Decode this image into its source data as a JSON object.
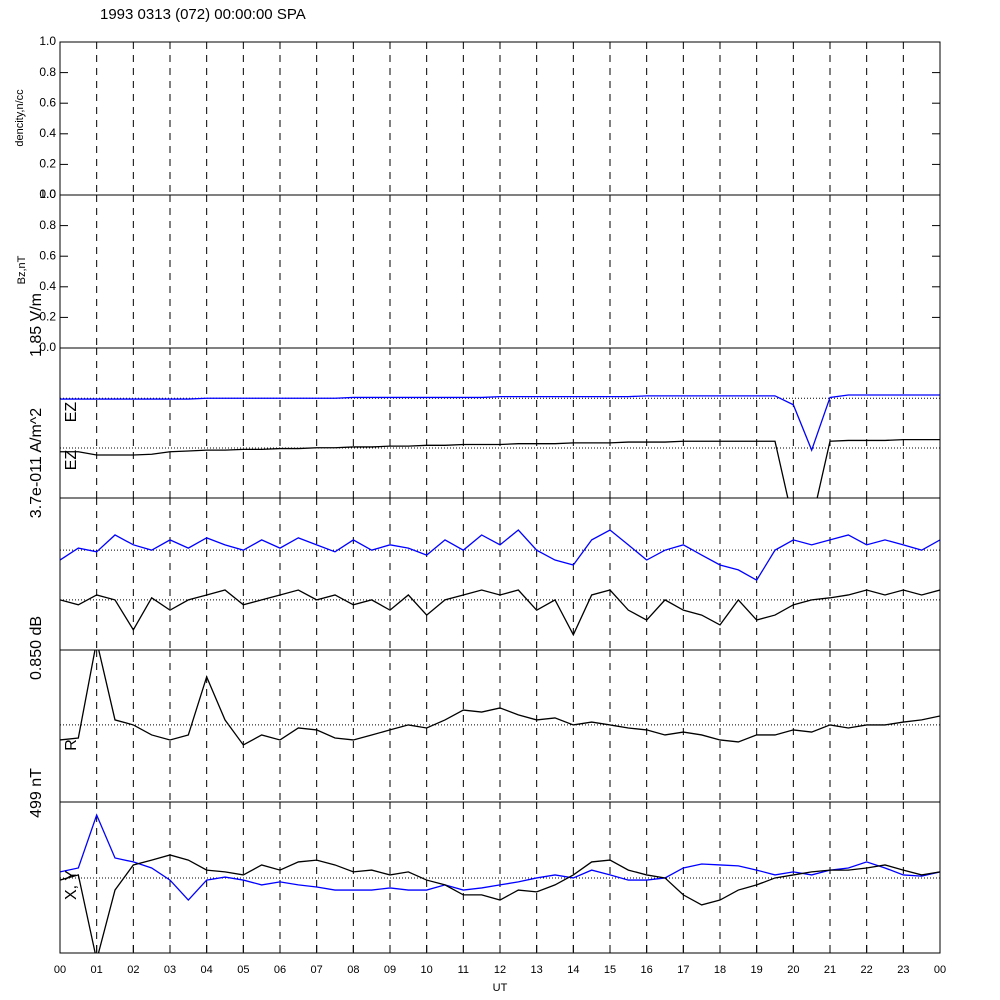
{
  "chart_data": [
    {
      "type": "line",
      "title": "1993 0313 (072) 00:00:00 SPA",
      "ylabel": "dencity,n/cc",
      "ylim": [
        0,
        1
      ],
      "yticks": [
        {
          "value": 0,
          "label": "0.0"
        },
        {
          "value": 0.2,
          "label": "0.2"
        },
        {
          "value": 0.4,
          "label": "0.4"
        },
        {
          "value": 0.6,
          "label": "0.6"
        },
        {
          "value": 0.8,
          "label": "0.8"
        },
        {
          "value": 1,
          "label": "1.0"
        }
      ]
    },
    {
      "type": "line",
      "ylabel": "Bz,nT",
      "ylim": [
        0,
        1
      ],
      "yticks": [
        {
          "value": 0,
          "label": "0.0"
        },
        {
          "value": 0.2,
          "label": "0.2"
        },
        {
          "value": 0.4,
          "label": "0.4"
        },
        {
          "value": 0.6,
          "label": "0.6"
        },
        {
          "value": 0.8,
          "label": "0.8"
        },
        {
          "value": 1,
          "label": "1.0"
        }
      ]
    },
    {
      "type": "line",
      "scale_label": "1.85 V/m",
      "ylim": [
        0,
        1.85
      ],
      "hlines": [
        1.23,
        0.617
      ],
      "x": [
        0,
        0.5,
        1,
        1.5,
        2,
        2.5,
        3,
        3.5,
        4,
        4.5,
        5,
        5.5,
        6,
        6.5,
        7,
        7.5,
        8,
        8.5,
        9,
        9.5,
        10,
        10.5,
        11,
        11.5,
        12,
        12.5,
        13,
        13.5,
        14,
        14.5,
        15,
        15.5,
        16,
        16.5,
        17,
        17.5,
        18,
        18.5,
        19,
        19.5,
        20,
        20.5,
        21,
        21.5,
        22,
        22.5,
        23,
        23.5,
        24
      ],
      "series": [
        {
          "name": "EZ",
          "color": "#0000ff",
          "values": [
            1.22,
            1.22,
            1.22,
            1.22,
            1.22,
            1.22,
            1.22,
            1.22,
            1.23,
            1.23,
            1.23,
            1.23,
            1.23,
            1.23,
            1.23,
            1.23,
            1.24,
            1.24,
            1.24,
            1.24,
            1.24,
            1.24,
            1.24,
            1.24,
            1.25,
            1.25,
            1.25,
            1.25,
            1.25,
            1.25,
            1.25,
            1.25,
            1.26,
            1.26,
            1.26,
            1.26,
            1.26,
            1.26,
            1.26,
            1.26,
            1.15,
            0.59,
            1.24,
            1.27,
            1.27,
            1.27,
            1.27,
            1.27,
            1.27
          ]
        },
        {
          "name": "EZ",
          "color": "#000000",
          "values": [
            0.57,
            0.57,
            0.53,
            0.53,
            0.53,
            0.54,
            0.57,
            0.58,
            0.59,
            0.59,
            0.6,
            0.6,
            0.61,
            0.61,
            0.62,
            0.62,
            0.63,
            0.63,
            0.64,
            0.64,
            0.65,
            0.65,
            0.66,
            0.66,
            0.66,
            0.67,
            0.67,
            0.67,
            0.68,
            0.68,
            0.68,
            0.69,
            0.69,
            0.69,
            0.7,
            0.7,
            0.7,
            0.7,
            0.7,
            0.7,
            -0.3,
            -0.3,
            0.7,
            0.71,
            0.71,
            0.71,
            0.72,
            0.72,
            0.72
          ]
        }
      ]
    },
    {
      "type": "line",
      "scale_label": "3.7e-011 A/m^2",
      "ylim": [
        0,
        3.7e-11
      ],
      "hlines": [
        2.43e-11,
        1.22e-11
      ],
      "x": [
        0,
        0.5,
        1,
        1.5,
        2,
        2.5,
        3,
        3.5,
        4,
        4.5,
        5,
        5.5,
        6,
        6.5,
        7,
        7.5,
        8,
        8.5,
        9,
        9.5,
        10,
        10.5,
        11,
        11.5,
        12,
        12.5,
        13,
        13.5,
        14,
        14.5,
        15,
        15.5,
        16,
        16.5,
        17,
        17.5,
        18,
        18.5,
        19,
        19.5,
        20,
        20.5,
        21,
        21.5,
        22,
        22.5,
        23,
        23.5,
        24
      ],
      "series": [
        {
          "color": "#0000ff",
          "values": [
            2.19e-11,
            2.48e-11,
            2.39e-11,
            2.8e-11,
            2.56e-11,
            2.43e-11,
            2.68e-11,
            2.48e-11,
            2.73e-11,
            2.56e-11,
            2.43e-11,
            2.68e-11,
            2.48e-11,
            2.73e-11,
            2.56e-11,
            2.39e-11,
            2.68e-11,
            2.43e-11,
            2.56e-11,
            2.48e-11,
            2.31e-11,
            2.68e-11,
            2.43e-11,
            2.8e-11,
            2.56e-11,
            2.92e-11,
            2.43e-11,
            2.19e-11,
            2.07e-11,
            2.68e-11,
            2.92e-11,
            2.56e-11,
            2.19e-11,
            2.43e-11,
            2.56e-11,
            2.31e-11,
            2.07e-11,
            1.95e-11,
            1.7e-11,
            2.43e-11,
            2.68e-11,
            2.56e-11,
            2.68e-11,
            2.8e-11,
            2.56e-11,
            2.68e-11,
            2.56e-11,
            2.43e-11,
            2.68e-11
          ]
        },
        {
          "color": "#000000",
          "values": [
            1.22e-11,
            1.1e-11,
            1.34e-11,
            1.22e-11,
            4.9e-12,
            1.27e-11,
            9.7e-12,
            1.22e-11,
            1.34e-11,
            1.46e-11,
            1.1e-11,
            1.22e-11,
            1.34e-11,
            1.46e-11,
            1.22e-11,
            1.34e-11,
            1.1e-11,
            1.22e-11,
            9.7e-12,
            1.34e-11,
            8.5e-12,
            1.22e-11,
            1.34e-11,
            1.46e-11,
            1.34e-11,
            1.46e-11,
            9.7e-12,
            1.22e-11,
            3.7e-12,
            1.34e-11,
            1.46e-11,
            9.7e-12,
            7.3e-12,
            1.22e-11,
            9.7e-12,
            8.5e-12,
            6.1e-12,
            1.22e-11,
            7.3e-12,
            8.5e-12,
            1.1e-11,
            1.22e-11,
            1.27e-11,
            1.34e-11,
            1.46e-11,
            1.34e-11,
            1.46e-11,
            1.34e-11,
            1.46e-11
          ]
        }
      ]
    },
    {
      "type": "line",
      "scale_label": "0.850 dB",
      "ylabel": "R",
      "ylim": [
        0,
        0.85
      ],
      "hlines": [
        0.431
      ],
      "x": [
        0,
        0.5,
        1,
        1.5,
        2,
        2.5,
        3,
        3.5,
        4,
        4.5,
        5,
        5.5,
        6,
        6.5,
        7,
        7.5,
        8,
        8.5,
        9,
        9.5,
        10,
        10.5,
        11,
        11.5,
        12,
        12.5,
        13,
        13.5,
        14,
        14.5,
        15,
        15.5,
        16,
        16.5,
        17,
        17.5,
        18,
        18.5,
        19,
        19.5,
        20,
        20.5,
        21,
        21.5,
        22,
        22.5,
        23,
        23.5,
        24
      ],
      "series": [
        {
          "color": "#000000",
          "values": [
            0.347,
            0.358,
            0.9,
            0.459,
            0.431,
            0.375,
            0.347,
            0.375,
            0.7,
            0.459,
            0.319,
            0.375,
            0.347,
            0.414,
            0.403,
            0.358,
            0.347,
            0.375,
            0.403,
            0.431,
            0.414,
            0.459,
            0.514,
            0.503,
            0.526,
            0.487,
            0.459,
            0.47,
            0.431,
            0.447,
            0.431,
            0.414,
            0.403,
            0.375,
            0.391,
            0.375,
            0.347,
            0.336,
            0.375,
            0.375,
            0.403,
            0.391,
            0.431,
            0.414,
            0.431,
            0.431,
            0.447,
            0.459,
            0.481
          ]
        }
      ]
    },
    {
      "type": "line",
      "scale_label": "499 nT",
      "ylabel": "X, Y",
      "ylim": [
        0,
        499
      ],
      "hlines": [
        248
      ],
      "x": [
        0,
        0.5,
        1,
        1.5,
        2,
        2.5,
        3,
        3.5,
        4,
        4.5,
        5,
        5.5,
        6,
        6.5,
        7,
        7.5,
        8,
        8.5,
        9,
        9.5,
        10,
        10.5,
        11,
        11.5,
        12,
        12.5,
        13,
        13.5,
        14,
        14.5,
        15,
        15.5,
        16,
        16.5,
        17,
        17.5,
        18,
        18.5,
        19,
        19.5,
        20,
        20.5,
        21,
        21.5,
        22,
        22.5,
        23,
        23.5,
        24
      ],
      "series": [
        {
          "color": "#0000ff",
          "values": [
            268,
            281,
            456,
            314,
            301,
            281,
            241,
            175,
            241,
            251,
            241,
            225,
            235,
            225,
            218,
            208,
            208,
            208,
            215,
            208,
            208,
            225,
            208,
            215,
            225,
            235,
            248,
            258,
            248,
            274,
            258,
            241,
            241,
            248,
            281,
            294,
            291,
            288,
            274,
            258,
            268,
            258,
            274,
            281,
            301,
            281,
            258,
            254,
            268
          ]
        },
        {
          "color": "#000000",
          "values": [
            241,
            258,
            -23,
            208,
            291,
            307,
            324,
            307,
            274,
            268,
            258,
            291,
            274,
            301,
            307,
            291,
            268,
            274,
            258,
            268,
            241,
            225,
            192,
            192,
            175,
            208,
            202,
            225,
            258,
            301,
            307,
            274,
            258,
            248,
            192,
            159,
            175,
            208,
            225,
            248,
            258,
            268,
            274,
            274,
            281,
            291,
            274,
            258,
            268
          ]
        }
      ],
      "xlabel": "UT",
      "xlim": [
        0,
        24
      ],
      "xticks": [
        {
          "value": 0,
          "label": "00"
        },
        {
          "value": 1,
          "label": "01"
        },
        {
          "value": 2,
          "label": "02"
        },
        {
          "value": 3,
          "label": "03"
        },
        {
          "value": 4,
          "label": "04"
        },
        {
          "value": 5,
          "label": "05"
        },
        {
          "value": 6,
          "label": "06"
        },
        {
          "value": 7,
          "label": "07"
        },
        {
          "value": 8,
          "label": "08"
        },
        {
          "value": 9,
          "label": "09"
        },
        {
          "value": 10,
          "label": "10"
        },
        {
          "value": 11,
          "label": "11"
        },
        {
          "value": 12,
          "label": "12"
        },
        {
          "value": 13,
          "label": "13"
        },
        {
          "value": 14,
          "label": "14"
        },
        {
          "value": 15,
          "label": "15"
        },
        {
          "value": 16,
          "label": "16"
        },
        {
          "value": 17,
          "label": "17"
        },
        {
          "value": 18,
          "label": "18"
        },
        {
          "value": 19,
          "label": "19"
        },
        {
          "value": 20,
          "label": "20"
        },
        {
          "value": 21,
          "label": "21"
        },
        {
          "value": 22,
          "label": "22"
        },
        {
          "value": 23,
          "label": "23"
        },
        {
          "value": 24,
          "label": "00"
        }
      ]
    }
  ]
}
